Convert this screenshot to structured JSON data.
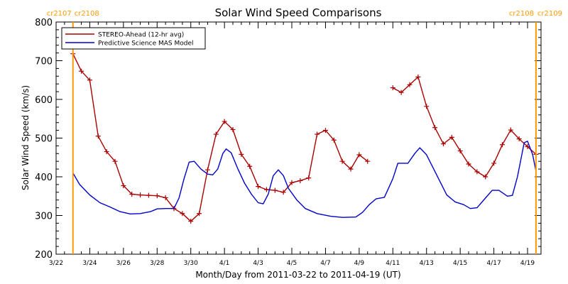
{
  "chart_data": {
    "type": "line",
    "title": "Solar Wind Speed Comparisons",
    "xlabel": "Month/Day from 2011-03-22 to 2011-04-19 (UT)",
    "ylabel": "Solar Wind Speed (km/s)",
    "xlim": [
      0,
      28.8
    ],
    "ylim": [
      200,
      800
    ],
    "yticks": [
      200,
      300,
      400,
      500,
      600,
      700,
      800
    ],
    "xticks": [
      {
        "day": 0,
        "label": "3/22"
      },
      {
        "day": 2,
        "label": "3/24"
      },
      {
        "day": 4,
        "label": "3/26"
      },
      {
        "day": 6,
        "label": "3/28"
      },
      {
        "day": 8,
        "label": "3/30"
      },
      {
        "day": 10,
        "label": "4/1"
      },
      {
        "day": 12,
        "label": "4/3"
      },
      {
        "day": 14,
        "label": "4/5"
      },
      {
        "day": 16,
        "label": "4/7"
      },
      {
        "day": 18,
        "label": "4/9"
      },
      {
        "day": 20,
        "label": "4/11"
      },
      {
        "day": 22,
        "label": "4/13"
      },
      {
        "day": 24,
        "label": "4/15"
      },
      {
        "day": 26,
        "label": "4/17"
      },
      {
        "day": 28,
        "label": "4/19"
      }
    ],
    "carrington_markers": [
      {
        "day": 1.0,
        "label_left": "cr2107",
        "label_right": "cr2108",
        "side": "left"
      },
      {
        "day": 28.5,
        "label_left": "cr2108",
        "label_right": "cr2109",
        "side": "right"
      }
    ],
    "legend_position": "top-left",
    "series": [
      {
        "name": "STEREO-Ahead (12-hr avg)",
        "color": "#aa0000",
        "markers": "plus",
        "segments": [
          [
            [
              1.0,
              718
            ],
            [
              1.5,
              673
            ],
            [
              2.0,
              650
            ],
            [
              2.5,
              505
            ],
            [
              3.0,
              465
            ],
            [
              3.5,
              440
            ],
            [
              4.0,
              377
            ],
            [
              4.5,
              355
            ],
            [
              5.0,
              353
            ],
            [
              5.5,
              352
            ],
            [
              6.0,
              351
            ],
            [
              6.5,
              346
            ],
            [
              7.0,
              318
            ],
            [
              7.5,
              305
            ],
            [
              8.0,
              285
            ],
            [
              8.5,
              305
            ],
            [
              9.0,
              418
            ],
            [
              9.5,
              510
            ],
            [
              10.0,
              543
            ],
            [
              10.5,
              522
            ],
            [
              11.0,
              458
            ],
            [
              11.5,
              427
            ],
            [
              12.0,
              375
            ],
            [
              12.5,
              367
            ],
            [
              13.0,
              365
            ],
            [
              13.5,
              360
            ],
            [
              14.0,
              385
            ],
            [
              14.5,
              390
            ],
            [
              15.0,
              397
            ],
            [
              15.5,
              510
            ],
            [
              16.0,
              520
            ],
            [
              16.5,
              495
            ],
            [
              17.0,
              440
            ],
            [
              17.5,
              420
            ],
            [
              18.0,
              457
            ],
            [
              18.5,
              440
            ]
          ],
          [
            [
              20.0,
              630
            ],
            [
              20.5,
              618
            ],
            [
              21.0,
              638
            ],
            [
              21.5,
              658
            ],
            [
              22.0,
              582
            ],
            [
              22.5,
              527
            ],
            [
              23.0,
              485
            ],
            [
              23.5,
              502
            ],
            [
              24.0,
              467
            ],
            [
              24.5,
              433
            ],
            [
              25.0,
              413
            ],
            [
              25.5,
              400
            ],
            [
              26.0,
              435
            ],
            [
              26.5,
              483
            ],
            [
              27.0,
              521
            ],
            [
              27.5,
              498
            ],
            [
              28.0,
              478
            ],
            [
              28.5,
              458
            ]
          ]
        ]
      },
      {
        "name": "Predictive Science MAS Model",
        "color": "#0000cc",
        "markers": "none",
        "segments": [
          [
            [
              1.0,
              410
            ],
            [
              1.4,
              380
            ],
            [
              2.0,
              353
            ],
            [
              2.6,
              333
            ],
            [
              3.2,
              322
            ],
            [
              3.8,
              310
            ],
            [
              4.4,
              304
            ],
            [
              5.0,
              305
            ],
            [
              5.6,
              310
            ],
            [
              6.0,
              317
            ],
            [
              6.5,
              318
            ],
            [
              7.0,
              318
            ],
            [
              7.3,
              345
            ],
            [
              7.6,
              395
            ],
            [
              7.9,
              438
            ],
            [
              8.2,
              440
            ],
            [
              8.6,
              420
            ],
            [
              9.0,
              407
            ],
            [
              9.3,
              405
            ],
            [
              9.6,
              420
            ],
            [
              9.9,
              460
            ],
            [
              10.1,
              472
            ],
            [
              10.4,
              462
            ],
            [
              10.8,
              420
            ],
            [
              11.2,
              383
            ],
            [
              11.6,
              355
            ],
            [
              12.0,
              333
            ],
            [
              12.3,
              330
            ],
            [
              12.6,
              355
            ],
            [
              12.9,
              403
            ],
            [
              13.2,
              418
            ],
            [
              13.5,
              403
            ],
            [
              13.8,
              370
            ],
            [
              14.3,
              340
            ],
            [
              14.8,
              318
            ],
            [
              15.5,
              305
            ],
            [
              16.3,
              298
            ],
            [
              17.0,
              295
            ],
            [
              17.8,
              296
            ],
            [
              18.2,
              308
            ],
            [
              18.6,
              328
            ],
            [
              19.0,
              343
            ],
            [
              19.5,
              347
            ],
            [
              20.0,
              395
            ],
            [
              20.3,
              435
            ],
            [
              20.9,
              435
            ],
            [
              21.3,
              460
            ],
            [
              21.6,
              475
            ],
            [
              22.0,
              457
            ],
            [
              22.6,
              405
            ],
            [
              23.2,
              353
            ],
            [
              23.7,
              335
            ],
            [
              24.2,
              328
            ],
            [
              24.6,
              318
            ],
            [
              25.0,
              320
            ],
            [
              25.5,
              345
            ],
            [
              25.9,
              365
            ],
            [
              26.3,
              365
            ],
            [
              26.8,
              350
            ],
            [
              27.1,
              352
            ],
            [
              27.4,
              400
            ],
            [
              27.8,
              488
            ],
            [
              28.0,
              492
            ],
            [
              28.3,
              458
            ],
            [
              28.5,
              415
            ]
          ]
        ]
      }
    ]
  }
}
